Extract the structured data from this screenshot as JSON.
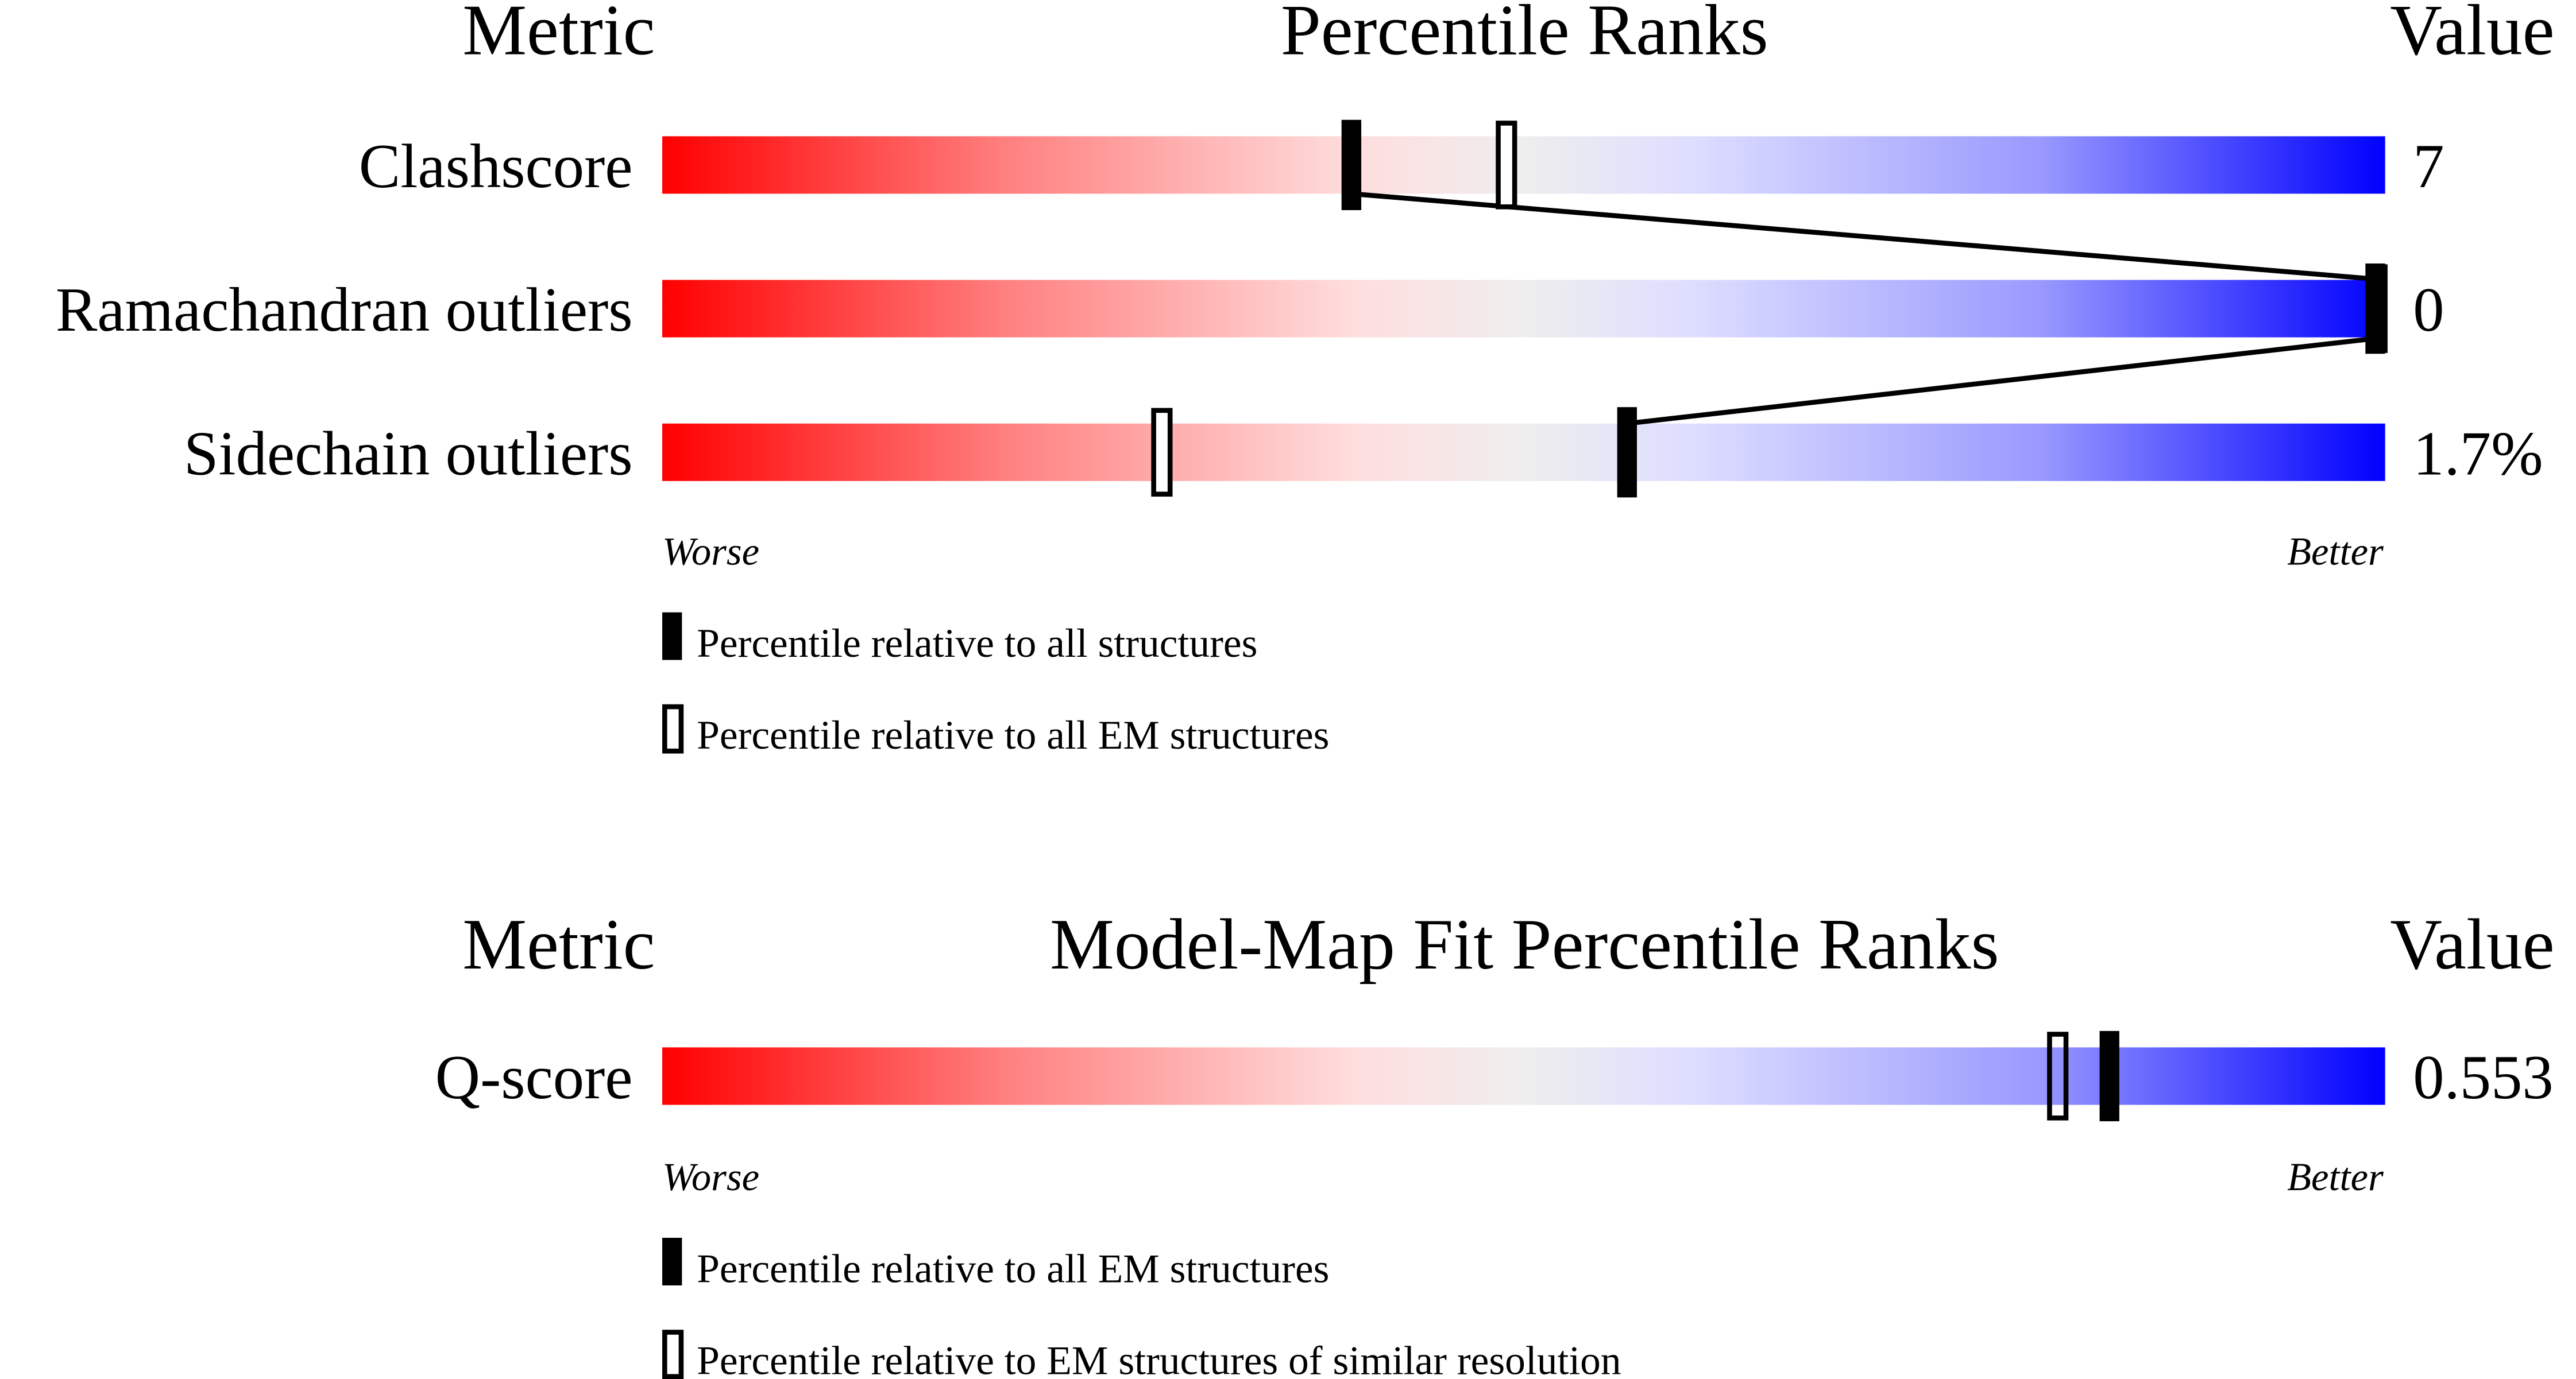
{
  "chart_data": [
    {
      "type": "percentile-slider",
      "headers": {
        "metric": "Metric",
        "title": "Percentile Ranks",
        "value": "Value"
      },
      "scale_labels": {
        "left": "Worse",
        "right": "Better"
      },
      "xlim": [
        0,
        100
      ],
      "rows": [
        {
          "metric": "Clashscore",
          "value": "7",
          "percentile_all": 40,
          "percentile_em": 49
        },
        {
          "metric": "Ramachandran outliers",
          "value": "0",
          "percentile_all": 100,
          "percentile_em": 100
        },
        {
          "metric": "Sidechain outliers",
          "value": "1.7%",
          "percentile_all": 56,
          "percentile_em": 29
        }
      ],
      "connect_filled_markers": true,
      "legend": {
        "filled": "Percentile relative to all structures",
        "open": "Percentile relative to all EM structures"
      }
    },
    {
      "type": "percentile-slider",
      "headers": {
        "metric": "Metric",
        "title": "Model-Map Fit Percentile Ranks",
        "value": "Value"
      },
      "scale_labels": {
        "left": "Worse",
        "right": "Better"
      },
      "xlim": [
        0,
        100
      ],
      "rows": [
        {
          "metric": "Q-score",
          "value": "0.553",
          "percentile_all": 84,
          "percentile_em": 81
        }
      ],
      "connect_filled_markers": false,
      "legend": {
        "filled": "Percentile relative to all EM structures",
        "open": "Percentile relative to EM structures of similar resolution"
      }
    }
  ],
  "colors": {
    "worse": "#ff0000",
    "neutral": "#eeeeee",
    "better": "#0000ff",
    "marker": "#000000"
  }
}
